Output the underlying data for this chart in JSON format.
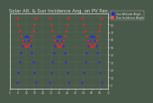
{
  "title": "Solar Alt. & Sun Incidence Ang. on PV Pan.",
  "title_fontsize": 3.8,
  "bg_color": "#4a5a4a",
  "plot_bg_color": "#4a5a4a",
  "legend_blue": "Sun Altitude Angle",
  "legend_red": "Sun Incidence Angle",
  "blue_color": "#2222ff",
  "red_color": "#ff2222",
  "ylim": [
    -5,
    95
  ],
  "xlim": [
    0,
    72
  ],
  "grid_color": "#888888",
  "marker_size": 2.5,
  "n_days": 3,
  "points_per_day": 24,
  "peak_altitude": 65,
  "daylight_start": 0.2,
  "daylight_end": 0.8,
  "yticks": [
    0,
    10,
    20,
    30,
    40,
    50,
    60,
    70,
    80,
    90
  ],
  "xtick_interval": 6,
  "title_color": "#dddddd",
  "tick_color": "#cccccc",
  "legend_bg": "#4a5a4a",
  "legend_text_color": "#dddddd"
}
